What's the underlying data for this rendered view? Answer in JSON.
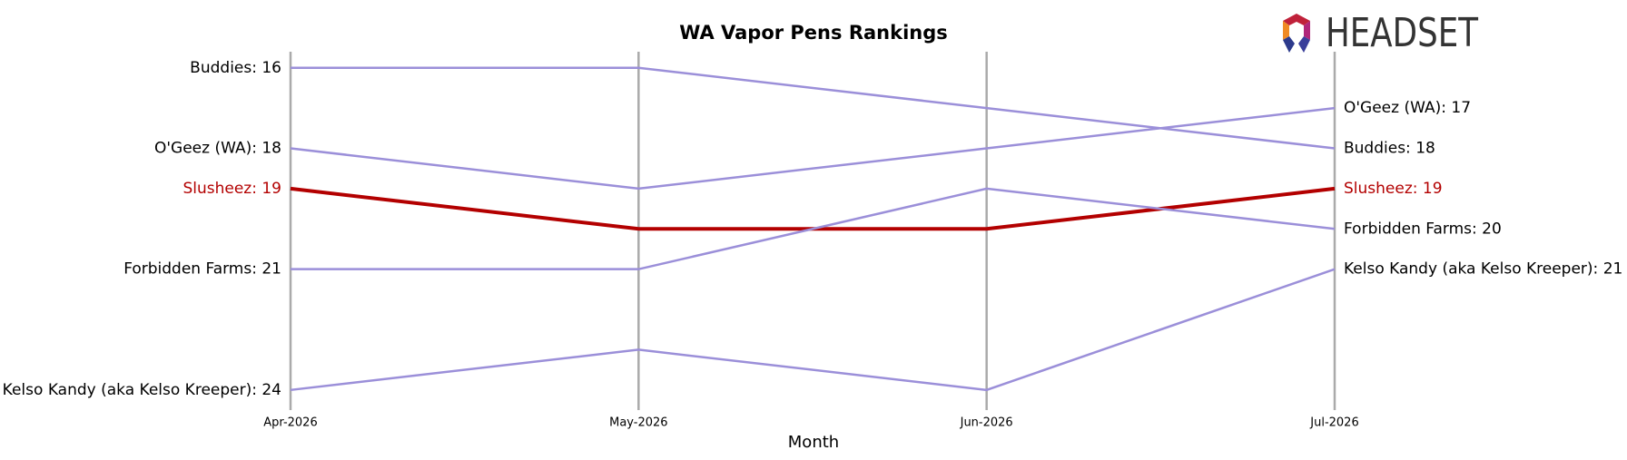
{
  "chart_data": {
    "type": "bump",
    "title": "WA Vapor Pens Rankings",
    "x_label": "Month",
    "logo_text": "HEADSET",
    "categories": [
      "Apr-2026",
      "May-2026",
      "Jun-2026",
      "Jul-2026"
    ],
    "ylim": [
      24.5,
      15.6
    ],
    "series": [
      {
        "name": "Buddies",
        "color": "#9b8fd9",
        "values": [
          16,
          16,
          17,
          18
        ],
        "value_labels": [
          "Buddies: 16",
          null,
          null,
          "Buddies: 18"
        ]
      },
      {
        "name": "O'Geez (WA)",
        "color": "#9b8fd9",
        "values": [
          18,
          19,
          18,
          17
        ],
        "value_labels": [
          "O'Geez (WA): 18",
          null,
          null,
          "O'Geez (WA): 17"
        ]
      },
      {
        "name": "Slusheez",
        "color": "#b30000",
        "highlight": true,
        "values": [
          19,
          20,
          20,
          19
        ],
        "value_labels": [
          "Slusheez: 19",
          null,
          null,
          "Slusheez: 19"
        ]
      },
      {
        "name": "Forbidden Farms",
        "color": "#9b8fd9",
        "values": [
          21,
          21,
          19,
          20
        ],
        "value_labels": [
          "Forbidden Farms: 21",
          null,
          null,
          "Forbidden Farms: 20"
        ]
      },
      {
        "name": "Kelso Kandy (aka Kelso Kreeper)",
        "color": "#9b8fd9",
        "values": [
          24,
          23,
          24,
          21
        ],
        "value_labels": [
          "Kelso Kandy (aka Kelso Kreeper): 24",
          null,
          null,
          "Kelso Kandy (aka Kelso Kreeper): 21"
        ]
      }
    ]
  }
}
